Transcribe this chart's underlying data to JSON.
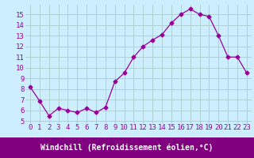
{
  "x": [
    0,
    1,
    2,
    3,
    4,
    5,
    6,
    7,
    8,
    9,
    10,
    11,
    12,
    13,
    14,
    15,
    16,
    17,
    18,
    19,
    20,
    21,
    22,
    23
  ],
  "y": [
    8.2,
    6.9,
    5.5,
    6.2,
    6.0,
    5.8,
    6.2,
    5.8,
    6.3,
    8.7,
    9.5,
    11.0,
    12.0,
    12.6,
    13.1,
    14.2,
    15.0,
    15.5,
    15.0,
    14.8,
    13.0,
    11.0,
    11.0,
    9.5
  ],
  "line_color": "#990099",
  "marker": "D",
  "markersize": 2.5,
  "linewidth": 0.9,
  "bg_color": "#cceeff",
  "grid_color": "#aacccc",
  "xlabel": "Windchill (Refroidissement éolien,°C)",
  "xlabel_color": "#ffffff",
  "xlabel_bg": "#800080",
  "ylabel_ticks": [
    5,
    6,
    7,
    8,
    9,
    10,
    11,
    12,
    13,
    14,
    15
  ],
  "xlim": [
    -0.5,
    23.5
  ],
  "ylim": [
    4.8,
    15.9
  ],
  "tick_label_color": "#990099",
  "axis_label_fontsize": 7,
  "tick_fontsize": 6.5
}
